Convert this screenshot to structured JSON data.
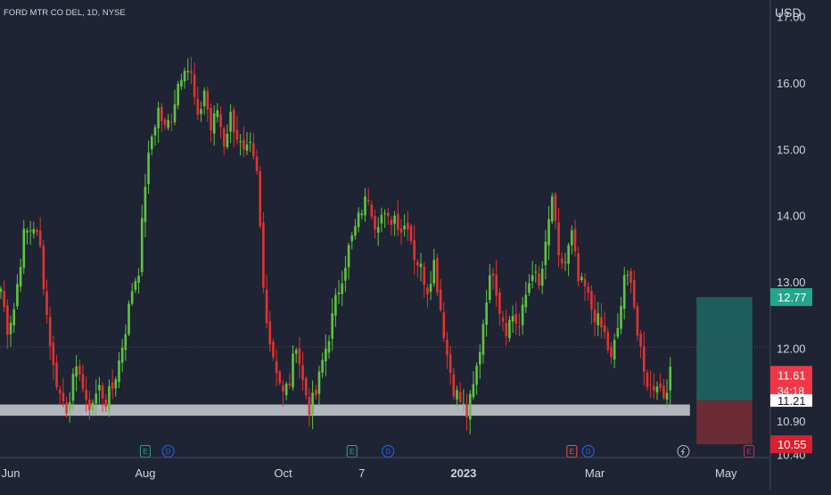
{
  "header": {
    "symbol_label": "FORD MTR CO DEL, 1D, NYSE"
  },
  "chart_data": {
    "type": "candlestick",
    "currency": "USD",
    "ylim": [
      10.35,
      17.25
    ],
    "y_ticks": [
      "17.00",
      "16.00",
      "15.00",
      "14.00",
      "13.00",
      "12.00",
      "10.90",
      "10.40"
    ],
    "x_ticks": [
      {
        "label": "Jun",
        "index": 3
      },
      {
        "label": "Aug",
        "index": 44
      },
      {
        "label": "Oct",
        "index": 86
      },
      {
        "label": "7",
        "index": 110
      },
      {
        "label": "2023",
        "index": 141,
        "bold": true
      },
      {
        "label": "Mar",
        "index": 181
      },
      {
        "label": "May",
        "index": 221
      }
    ],
    "candles_count": 205,
    "waypoints": [
      [
        0,
        12.9
      ],
      [
        2,
        12.3
      ],
      [
        4,
        12.6
      ],
      [
        7,
        13.7
      ],
      [
        10,
        13.85
      ],
      [
        12,
        13.5
      ],
      [
        14,
        12.5
      ],
      [
        16,
        11.7
      ],
      [
        18,
        11.3
      ],
      [
        20,
        11.1
      ],
      [
        22,
        11.5
      ],
      [
        24,
        11.7
      ],
      [
        26,
        11.1
      ],
      [
        28,
        11.2
      ],
      [
        30,
        11.4
      ],
      [
        32,
        11.2
      ],
      [
        34,
        11.4
      ],
      [
        36,
        11.8
      ],
      [
        38,
        12.3
      ],
      [
        40,
        12.9
      ],
      [
        42,
        13.2
      ],
      [
        44,
        14.5
      ],
      [
        46,
        15.2
      ],
      [
        48,
        15.6
      ],
      [
        50,
        15.3
      ],
      [
        52,
        15.5
      ],
      [
        54,
        16.0
      ],
      [
        56,
        16.3
      ],
      [
        58,
        16.1
      ],
      [
        60,
        15.4
      ],
      [
        62,
        15.9
      ],
      [
        64,
        15.3
      ],
      [
        66,
        15.6
      ],
      [
        68,
        15.1
      ],
      [
        70,
        15.5
      ],
      [
        72,
        15.2
      ],
      [
        74,
        14.9
      ],
      [
        76,
        15.0
      ],
      [
        78,
        14.6
      ],
      [
        79,
        13.8
      ],
      [
        80,
        12.9
      ],
      [
        82,
        12.1
      ],
      [
        84,
        11.7
      ],
      [
        86,
        11.3
      ],
      [
        88,
        11.5
      ],
      [
        90,
        12.1
      ],
      [
        92,
        11.5
      ],
      [
        94,
        11.1
      ],
      [
        96,
        11.3
      ],
      [
        98,
        11.8
      ],
      [
        100,
        12.2
      ],
      [
        102,
        12.7
      ],
      [
        104,
        13.1
      ],
      [
        106,
        13.5
      ],
      [
        108,
        13.8
      ],
      [
        110,
        14.1
      ],
      [
        112,
        14.3
      ],
      [
        114,
        13.9
      ],
      [
        116,
        14.0
      ],
      [
        118,
        13.9
      ],
      [
        120,
        14.0
      ],
      [
        122,
        13.8
      ],
      [
        124,
        13.9
      ],
      [
        126,
        13.4
      ],
      [
        128,
        13.2
      ],
      [
        130,
        12.9
      ],
      [
        132,
        13.3
      ],
      [
        134,
        12.6
      ],
      [
        136,
        11.9
      ],
      [
        138,
        11.4
      ],
      [
        140,
        11.2
      ],
      [
        142,
        11.0
      ],
      [
        144,
        11.4
      ],
      [
        146,
        12.0
      ],
      [
        148,
        12.8
      ],
      [
        150,
        13.2
      ],
      [
        152,
        12.6
      ],
      [
        154,
        12.3
      ],
      [
        156,
        12.5
      ],
      [
        158,
        12.3
      ],
      [
        160,
        12.8
      ],
      [
        162,
        13.2
      ],
      [
        164,
        12.9
      ],
      [
        166,
        13.5
      ],
      [
        168,
        14.3
      ],
      [
        170,
        13.3
      ],
      [
        172,
        13.3
      ],
      [
        174,
        13.7
      ],
      [
        176,
        13.0
      ],
      [
        178,
        12.9
      ],
      [
        180,
        12.6
      ],
      [
        182,
        12.4
      ],
      [
        184,
        12.2
      ],
      [
        186,
        11.8
      ],
      [
        188,
        12.3
      ],
      [
        190,
        13.0
      ],
      [
        192,
        13.1
      ],
      [
        194,
        12.2
      ],
      [
        196,
        11.6
      ],
      [
        198,
        11.4
      ],
      [
        200,
        11.5
      ],
      [
        202,
        11.3
      ],
      [
        204,
        11.6
      ]
    ],
    "last_price": "11.61",
    "countdown": "34:18",
    "support_price": "11.21",
    "target_price": "12.77",
    "stop_price": "10.55",
    "position": {
      "entry": 11.21,
      "target": 12.77,
      "stop": 10.55,
      "start_index": 212,
      "end_index": 229
    },
    "support_zone": {
      "top": 11.15,
      "bottom": 10.98,
      "start_index": -7,
      "end_index": 210
    },
    "events": [
      {
        "type": "E",
        "index": 44,
        "color": "#26a69a"
      },
      {
        "type": "D",
        "index": 51,
        "color": "#2962ff"
      },
      {
        "type": "E",
        "index": 107,
        "color": "#26a69a"
      },
      {
        "type": "D",
        "index": 118,
        "color": "#2962ff"
      },
      {
        "type": "E",
        "index": 174,
        "color": "#ef5350"
      },
      {
        "type": "D",
        "index": 179,
        "color": "#2962ff"
      },
      {
        "type": "split",
        "index": 208,
        "color": "#b2b5be"
      },
      {
        "type": "E",
        "index": 228,
        "color": "#e91e63"
      }
    ],
    "colors": {
      "background": "#1e2433",
      "up": "#5fc441",
      "down": "#e23333",
      "support_zone": "#b2b5be",
      "target_zone": "#1e5c5d",
      "stop_zone": "#6b2c35",
      "target_badge": "#22a68c",
      "stop_badge": "#d92030",
      "last_badge": "#f23645"
    }
  }
}
